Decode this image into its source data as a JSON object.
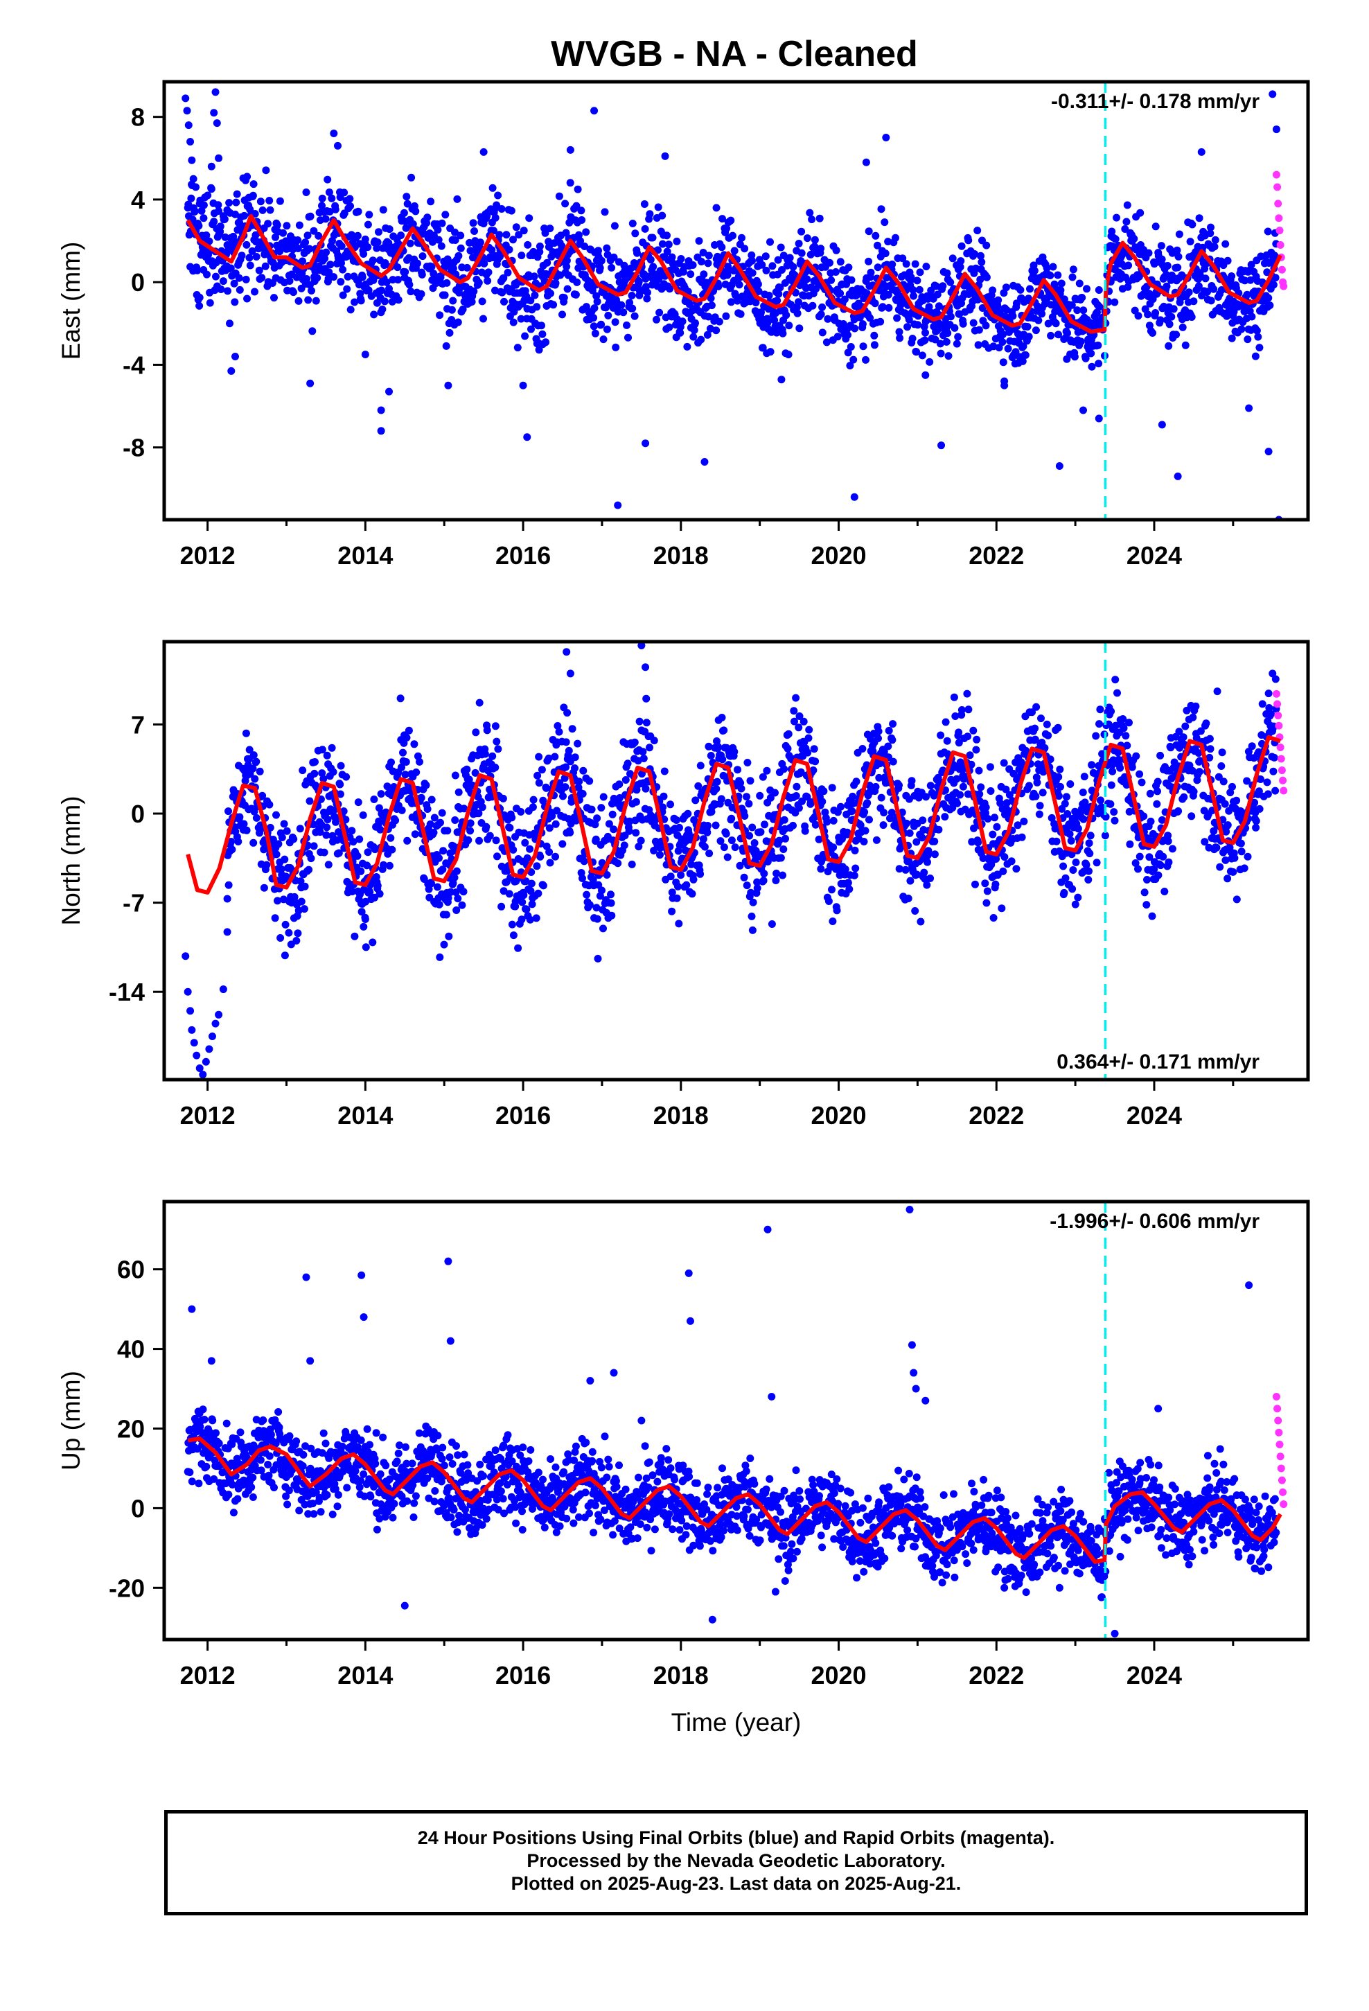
{
  "title": "WVGB  - NA - Cleaned",
  "colors": {
    "final": "#0000ff",
    "rapid": "#ff33ff",
    "model": "#ff0000",
    "marker": "#00eeee",
    "frame": "#000000"
  },
  "caption": {
    "line1": "24 Hour Positions Using Final Orbits (blue) and Rapid Orbits (magenta).",
    "line2": "Processed by the Nevada Geodetic Laboratory.",
    "line3": "Plotted on 2025-Aug-23. Last data on 2025-Aug-21."
  },
  "chart_data": [
    {
      "type": "scatter",
      "component": "East",
      "ylabel": "East (mm)",
      "xlabel": "",
      "xlim": [
        2011.45,
        2025.95
      ],
      "ylim": [
        -11.5,
        9.7
      ],
      "xticks": [
        2012,
        2014,
        2016,
        2018,
        2020,
        2022,
        2024
      ],
      "yticks": [
        8,
        4,
        0,
        -4,
        -8
      ],
      "rate_text": "-0.311+/- 0.178 mm/yr",
      "rate_position": "top-right",
      "marker_year": 2023.38,
      "model": {
        "x": [
          2011.75,
          2011.9,
          2012.1,
          2012.3,
          2012.45,
          2012.55,
          2012.7,
          2012.85,
          2013.0,
          2013.2,
          2013.3,
          2013.45,
          2013.6,
          2013.75,
          2013.95,
          2014.2,
          2014.3,
          2014.45,
          2014.6,
          2014.75,
          2014.95,
          2015.2,
          2015.3,
          2015.45,
          2015.6,
          2015.75,
          2015.95,
          2016.2,
          2016.3,
          2016.45,
          2016.6,
          2016.75,
          2016.95,
          2017.2,
          2017.3,
          2017.45,
          2017.6,
          2017.75,
          2017.95,
          2018.2,
          2018.3,
          2018.45,
          2018.6,
          2018.75,
          2018.95,
          2019.2,
          2019.3,
          2019.45,
          2019.6,
          2019.75,
          2019.95,
          2020.2,
          2020.3,
          2020.45,
          2020.6,
          2020.75,
          2020.95,
          2021.2,
          2021.3,
          2021.45,
          2021.6,
          2021.75,
          2021.95,
          2022.2,
          2022.3,
          2022.45,
          2022.6,
          2022.75,
          2022.95,
          2023.2,
          2023.37,
          2023.39,
          2023.45,
          2023.6,
          2023.75,
          2023.95,
          2024.2,
          2024.3,
          2024.45,
          2024.6,
          2024.75,
          2024.95,
          2025.2,
          2025.3,
          2025.45,
          2025.6
        ],
        "y": [
          3.0,
          2.0,
          1.5,
          1.0,
          2.2,
          3.2,
          2.2,
          1.2,
          1.2,
          0.7,
          0.8,
          2.0,
          3.0,
          2.0,
          0.9,
          0.3,
          0.6,
          1.6,
          2.6,
          1.8,
          0.6,
          0.0,
          0.2,
          1.2,
          2.3,
          1.5,
          0.2,
          -0.4,
          -0.2,
          0.9,
          2.0,
          1.2,
          -0.1,
          -0.6,
          -0.5,
          0.5,
          1.7,
          1.0,
          -0.4,
          -0.9,
          -0.8,
          0.2,
          1.4,
          0.6,
          -0.7,
          -1.2,
          -1.1,
          -0.1,
          1.0,
          0.3,
          -1.0,
          -1.5,
          -1.4,
          -0.4,
          0.7,
          0.0,
          -1.3,
          -1.8,
          -1.7,
          -0.7,
          0.4,
          -0.3,
          -1.6,
          -2.1,
          -2.0,
          -1.0,
          0.1,
          -0.6,
          -1.9,
          -2.4,
          -2.3,
          -0.3,
          0.9,
          1.9,
          1.2,
          -0.1,
          -0.7,
          -0.6,
          0.4,
          1.5,
          0.8,
          -0.5,
          -1.0,
          -0.9,
          0.1,
          1.3
        ]
      },
      "points_final": {
        "year": [
          2011.72,
          2011.74,
          2011.76,
          2011.78,
          2011.8,
          2011.82,
          2011.85,
          2011.9,
          2011.95,
          2012.0,
          2012.05,
          2012.08,
          2012.1,
          2012.12,
          2012.14,
          2012.2,
          2012.25,
          2012.28,
          2012.3,
          2012.35,
          2012.4,
          2012.5,
          2013.3,
          2013.6,
          2013.65,
          2014.0,
          2014.2,
          2014.2,
          2014.3,
          2015.05,
          2015.5,
          2016.0,
          2016.05,
          2016.6,
          2016.9,
          2017.2,
          2017.55,
          2017.8,
          2018.3,
          2018.45,
          2020.2,
          2020.35,
          2020.6,
          2021.1,
          2021.3,
          2022.1,
          2022.8,
          2023.1,
          2023.3,
          2024.1,
          2024.3,
          2024.6,
          2025.2,
          2025.45,
          2025.5,
          2025.55,
          2025.58
        ],
        "value": [
          8.9,
          8.3,
          7.6,
          6.8,
          5.9,
          5.0,
          4.6,
          3.8,
          3.1,
          4.2,
          5.6,
          8.2,
          9.2,
          7.7,
          6.0,
          3.2,
          1.8,
          -2.0,
          -4.3,
          -3.6,
          0.2,
          -0.8,
          -4.9,
          7.2,
          6.6,
          -3.5,
          -6.2,
          -7.2,
          -5.3,
          -5.0,
          6.3,
          -5.0,
          -7.5,
          6.4,
          8.3,
          -10.8,
          -7.8,
          6.1,
          -8.7,
          3.6,
          -10.4,
          5.8,
          7.0,
          -4.5,
          -7.9,
          -5.0,
          -8.9,
          -6.2,
          -6.6,
          -6.9,
          -9.4,
          6.3,
          -6.1,
          -8.2,
          9.1,
          7.4,
          -11.5
        ],
        "band": {
          "year": [
            2011.75,
            2012.5,
            2013.0,
            2014.0,
            2015.0,
            2016.0,
            2017.0,
            2018.0,
            2019.0,
            2020.0,
            2021.0,
            2022.0,
            2023.37,
            2023.39,
            2024.0,
            2025.0,
            2025.55
          ],
          "center": [
            4.5,
            1.5,
            1.5,
            1.0,
            0.5,
            0.0,
            -0.3,
            -0.6,
            -0.8,
            -1.0,
            -1.2,
            -1.5,
            -2.0,
            0.2,
            -0.2,
            -0.5,
            -0.2
          ],
          "halfwidth": [
            3.0,
            2.6,
            2.4,
            2.8,
            2.8,
            3.2,
            2.8,
            2.6,
            2.4,
            2.4,
            2.2,
            2.2,
            2.2,
            2.4,
            2.4,
            2.4,
            2.6
          ]
        }
      },
      "points_rapid": {
        "year": [
          2025.55,
          2025.56,
          2025.57,
          2025.58,
          2025.59,
          2025.6,
          2025.61,
          2025.62,
          2025.63,
          2025.64
        ],
        "value": [
          5.2,
          4.6,
          3.8,
          3.1,
          2.5,
          1.8,
          1.2,
          0.6,
          0.0,
          -0.2
        ]
      }
    },
    {
      "type": "scatter",
      "component": "North",
      "ylabel": "North (mm)",
      "xlabel": "",
      "xlim": [
        2011.45,
        2025.95
      ],
      "ylim": [
        -20.9,
        13.5
      ],
      "xticks": [
        2012,
        2014,
        2016,
        2018,
        2020,
        2022,
        2024
      ],
      "yticks": [
        7,
        0,
        -7,
        -14
      ],
      "rate_text": "0.364+/- 0.171 mm/yr",
      "rate_position": "bottom-right",
      "marker_year": 2023.38,
      "model": {
        "x": [
          2011.75,
          2011.87,
          2012.0,
          2012.15,
          2012.3,
          2012.45,
          2012.6,
          2012.75,
          2012.87,
          2013.0,
          2013.15,
          2013.3,
          2013.45,
          2013.6,
          2013.75,
          2013.87,
          2014.0,
          2014.15,
          2014.3,
          2014.45,
          2014.6,
          2014.75,
          2014.87,
          2015.0,
          2015.15,
          2015.3,
          2015.45,
          2015.6,
          2015.75,
          2015.87,
          2016.0,
          2016.15,
          2016.3,
          2016.45,
          2016.6,
          2016.75,
          2016.87,
          2017.0,
          2017.15,
          2017.3,
          2017.45,
          2017.6,
          2017.75,
          2017.87,
          2018.0,
          2018.15,
          2018.3,
          2018.45,
          2018.6,
          2018.75,
          2018.87,
          2019.0,
          2019.15,
          2019.3,
          2019.45,
          2019.6,
          2019.75,
          2019.87,
          2020.0,
          2020.15,
          2020.3,
          2020.45,
          2020.6,
          2020.75,
          2020.87,
          2021.0,
          2021.15,
          2021.3,
          2021.45,
          2021.6,
          2021.75,
          2021.87,
          2022.0,
          2022.15,
          2022.3,
          2022.45,
          2022.6,
          2022.75,
          2022.87,
          2023.0,
          2023.15,
          2023.3,
          2023.45,
          2023.6,
          2023.75,
          2023.87,
          2024.0,
          2024.15,
          2024.3,
          2024.45,
          2024.6,
          2024.75,
          2024.87,
          2025.0,
          2025.15,
          2025.3,
          2025.45,
          2025.6
        ],
        "y": [
          -3.2,
          -6.0,
          -6.2,
          -4.3,
          -0.8,
          2.2,
          2.0,
          -1.5,
          -5.6,
          -5.8,
          -4.1,
          -0.4,
          2.4,
          2.1,
          -2.0,
          -5.4,
          -5.6,
          -3.9,
          -0.2,
          2.7,
          2.4,
          -1.8,
          -5.1,
          -5.3,
          -3.6,
          0.1,
          3.0,
          2.7,
          -1.4,
          -4.8,
          -5.0,
          -3.3,
          0.4,
          3.3,
          3.0,
          -1.1,
          -4.5,
          -4.7,
          -3.0,
          0.7,
          3.6,
          3.3,
          -0.8,
          -4.2,
          -4.4,
          -2.7,
          1.0,
          3.9,
          3.6,
          -0.5,
          -3.9,
          -4.1,
          -2.4,
          1.3,
          4.2,
          3.9,
          -0.2,
          -3.6,
          -3.8,
          -2.1,
          1.6,
          4.5,
          4.2,
          0.1,
          -3.3,
          -3.5,
          -1.8,
          1.9,
          4.8,
          4.5,
          0.4,
          -3.0,
          -3.2,
          -1.5,
          2.2,
          5.1,
          4.8,
          0.7,
          -2.7,
          -2.9,
          -1.2,
          2.5,
          5.4,
          5.1,
          1.0,
          -2.4,
          -2.6,
          -0.9,
          2.8,
          5.7,
          5.4,
          1.3,
          -2.1,
          -2.3,
          -0.6,
          3.1,
          6.0,
          5.7
        ]
      },
      "points_final": {
        "year": [
          2011.72,
          2011.75,
          2011.78,
          2011.8,
          2011.83,
          2011.86,
          2011.9,
          2011.94,
          2011.98,
          2012.02,
          2012.06,
          2012.1,
          2012.14,
          2012.2,
          2012.25,
          2016.55,
          2016.6,
          2017.5,
          2017.55,
          2024.8,
          2025.5,
          2016.9,
          2015.9,
          2014.0
        ],
        "value": [
          -11.2,
          -14.0,
          -15.5,
          -17.0,
          -18.0,
          -19.0,
          -20.0,
          -20.5,
          -19.5,
          -18.5,
          -17.5,
          -16.5,
          -15.8,
          -13.8,
          -9.3,
          12.7,
          11.0,
          13.2,
          11.5,
          9.6,
          11.0,
          -8.2,
          -7.3,
          -8.3
        ],
        "band": {
          "year": [
            2012.25,
            2013.0,
            2014.0,
            2015.0,
            2016.0,
            2017.0,
            2018.0,
            2019.0,
            2020.0,
            2021.0,
            2022.0,
            2023.0,
            2024.0,
            2025.0,
            2025.55
          ],
          "center": [
            -1.0,
            -1.5,
            -1.2,
            -0.9,
            -0.6,
            -0.3,
            0.0,
            0.3,
            0.6,
            0.9,
            1.2,
            1.5,
            1.8,
            2.1,
            2.4
          ],
          "halfwidth": [
            3.5,
            5.0,
            5.0,
            5.0,
            5.5,
            5.5,
            5.0,
            5.0,
            5.0,
            5.0,
            5.0,
            5.0,
            5.0,
            5.0,
            4.5
          ]
        }
      },
      "points_rapid": {
        "year": [
          2025.55,
          2025.56,
          2025.57,
          2025.58,
          2025.59,
          2025.6,
          2025.61,
          2025.62,
          2025.63,
          2025.64
        ],
        "value": [
          9.4,
          8.6,
          7.7,
          6.9,
          6.0,
          5.2,
          4.3,
          3.4,
          2.6,
          1.8
        ]
      }
    },
    {
      "type": "scatter",
      "component": "Up",
      "ylabel": "Up (mm)",
      "xlabel": "Time (year)",
      "xlim": [
        2011.45,
        2025.95
      ],
      "ylim": [
        -33,
        77
      ],
      "xticks": [
        2012,
        2014,
        2016,
        2018,
        2020,
        2022,
        2024
      ],
      "yticks": [
        60,
        40,
        20,
        0,
        -20
      ],
      "rate_text": "-1.996+/- 0.606 mm/yr",
      "rate_position": "top-right",
      "marker_year": 2023.38,
      "model": {
        "x": [
          2011.75,
          2011.9,
          2012.1,
          2012.3,
          2012.5,
          2012.65,
          2012.8,
          2013.0,
          2013.2,
          2013.3,
          2013.5,
          2013.7,
          2013.85,
          2014.0,
          2014.25,
          2014.35,
          2014.5,
          2014.7,
          2014.85,
          2015.0,
          2015.25,
          2015.35,
          2015.5,
          2015.7,
          2015.85,
          2016.0,
          2016.25,
          2016.35,
          2016.5,
          2016.7,
          2016.85,
          2017.0,
          2017.25,
          2017.35,
          2017.5,
          2017.7,
          2017.85,
          2018.0,
          2018.25,
          2018.35,
          2018.5,
          2018.7,
          2018.85,
          2019.0,
          2019.25,
          2019.35,
          2019.5,
          2019.7,
          2019.85,
          2020.0,
          2020.25,
          2020.35,
          2020.5,
          2020.7,
          2020.85,
          2021.0,
          2021.25,
          2021.35,
          2021.5,
          2021.7,
          2021.85,
          2022.0,
          2022.25,
          2022.35,
          2022.5,
          2022.7,
          2022.85,
          2023.0,
          2023.25,
          2023.37,
          2023.39,
          2023.5,
          2023.7,
          2023.85,
          2024.0,
          2024.25,
          2024.35,
          2024.5,
          2024.7,
          2024.85,
          2025.0,
          2025.25,
          2025.35,
          2025.5,
          2025.6
        ],
        "y": [
          17.0,
          17.5,
          14.0,
          8.5,
          11.0,
          14.5,
          15.5,
          13.5,
          8.0,
          5.5,
          8.5,
          12.5,
          13.5,
          11.0,
          4.5,
          3.5,
          6.5,
          10.5,
          11.5,
          9.0,
          2.5,
          1.5,
          4.5,
          8.5,
          9.5,
          7.0,
          0.5,
          -0.5,
          2.5,
          6.5,
          7.5,
          5.0,
          -1.5,
          -2.5,
          0.5,
          4.5,
          5.5,
          3.0,
          -3.5,
          -4.5,
          -1.5,
          2.5,
          3.5,
          1.0,
          -5.5,
          -6.5,
          -3.5,
          0.5,
          1.5,
          -1.0,
          -7.5,
          -8.5,
          -5.5,
          -1.5,
          -0.5,
          -3.0,
          -9.5,
          -10.5,
          -7.5,
          -3.5,
          -2.5,
          -5.0,
          -11.5,
          -12.5,
          -9.5,
          -5.5,
          -4.5,
          -7.0,
          -13.5,
          -13.0,
          -4.0,
          0.5,
          3.5,
          4.0,
          1.0,
          -5.0,
          -6.0,
          -3.0,
          1.0,
          2.0,
          -0.5,
          -7.0,
          -8.0,
          -5.0,
          -1.5
        ]
      },
      "points_final": {
        "year": [
          2011.8,
          2012.05,
          2013.25,
          2013.3,
          2013.95,
          2013.98,
          2014.5,
          2015.05,
          2015.08,
          2016.85,
          2017.15,
          2017.5,
          2018.1,
          2018.12,
          2018.4,
          2019.1,
          2019.15,
          2020.9,
          2020.93,
          2020.95,
          2020.98,
          2021.1,
          2023.5,
          2024.05,
          2025.2,
          2022.1,
          2022.8,
          2019.2
        ],
        "value": [
          50.0,
          37.0,
          58.0,
          37.0,
          58.5,
          48.0,
          -24.5,
          62.0,
          42.0,
          32.0,
          34.0,
          22.0,
          59.0,
          47.0,
          -28.0,
          70.0,
          28.0,
          75.0,
          41.0,
          34.0,
          30.0,
          27.0,
          -31.5,
          25.0,
          56.0,
          -20.0,
          -20.0,
          -21.0
        ],
        "band": {
          "year": [
            2011.75,
            2012.3,
            2013.2,
            2014.0,
            2015.0,
            2016.0,
            2017.0,
            2018.0,
            2019.0,
            2020.0,
            2021.0,
            2022.0,
            2023.37,
            2023.39,
            2024.0,
            2025.0,
            2025.55
          ],
          "center": [
            20.0,
            12.0,
            12.0,
            10.0,
            8.0,
            5.0,
            3.0,
            1.0,
            -1.0,
            -3.0,
            -5.0,
            -7.0,
            -9.0,
            0.0,
            -1.0,
            -3.0,
            -4.0
          ],
          "halfwidth": [
            10.0,
            9.0,
            10.0,
            10.0,
            10.0,
            10.0,
            10.0,
            10.0,
            10.0,
            10.0,
            10.0,
            10.0,
            10.0,
            9.0,
            9.0,
            9.0,
            9.0
          ]
        }
      },
      "points_rapid": {
        "year": [
          2025.55,
          2025.56,
          2025.57,
          2025.58,
          2025.59,
          2025.6,
          2025.61,
          2025.62,
          2025.63,
          2025.64
        ],
        "value": [
          28.0,
          25.0,
          22.0,
          19.0,
          16.0,
          13.0,
          10.0,
          7.0,
          4.0,
          1.0
        ]
      }
    }
  ]
}
